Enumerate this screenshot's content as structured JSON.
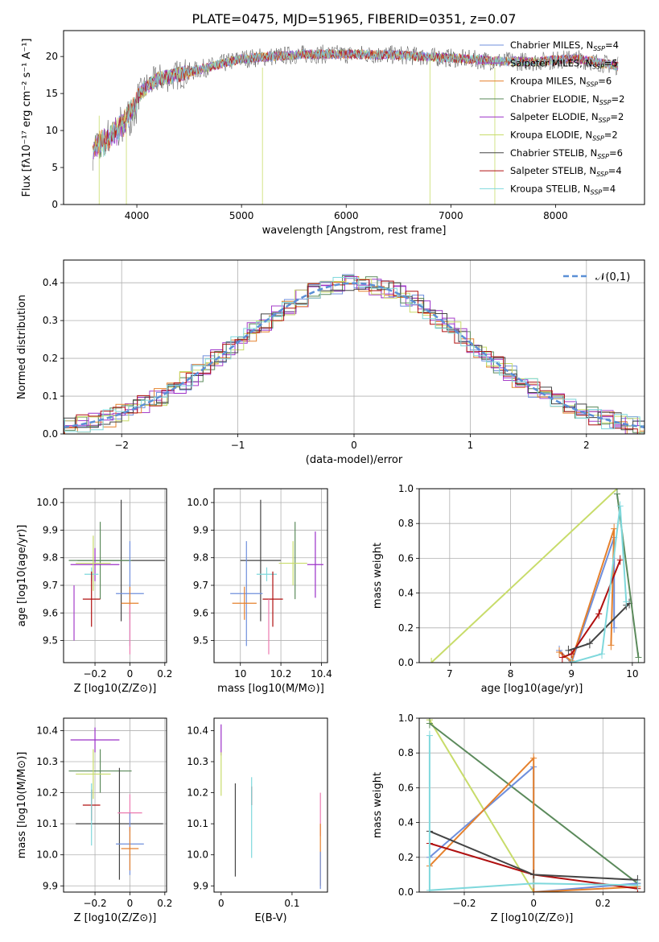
{
  "figure_title": "PLATE=0475, MJD=51965, FIBERID=0351, z=0.07",
  "colors": {
    "chabrier_miles": "#6f8fdc",
    "salpeter_miles": "#a63fc9",
    "kroupa_miles": "#e5812d",
    "chabrier_elodie": "#5b8a5b",
    "salpeter_elodie": "#9b30c8",
    "kroupa_elodie": "#c8dc6a",
    "chabrier_stelib": "#444444",
    "salpeter_stelib": "#b01010",
    "kroupa_stelib": "#7fd8dc",
    "gauss": "#5b8fd6",
    "pink": "#ec7ab0"
  },
  "chart_data": [
    {
      "type": "line",
      "title": "PLATE=0475, MJD=51965, FIBERID=0351, z=0.07",
      "xlabel": "wavelength [Angstrom, rest frame]",
      "ylabel": "Flux [fλ10⁻¹⁷ erg cm⁻² s⁻¹ A⁻¹]",
      "xlim": [
        3300,
        8850
      ],
      "ylim": [
        0,
        23.5
      ],
      "xticks": [
        4000,
        5000,
        6000,
        7000,
        8000
      ],
      "yticks": [
        0,
        5,
        10,
        15,
        20
      ],
      "grid": false,
      "legend_position": "top-right",
      "legend": [
        "Chabrier MILES, N_SSP=4",
        "Salpeter MILES, N_SSP=5",
        "Kroupa MILES, N_SSP=6",
        "Chabrier ELODIE, N_SSP=2",
        "Salpeter ELODIE, N_SSP=2",
        "Kroupa ELODIE, N_SSP=2",
        "Chabrier STELIB, N_SSP=6",
        "Salpeter STELIB, N_SSP=4",
        "Kroupa STELIB, N_SSP=4"
      ],
      "legend_colors": [
        "#6f8fdc",
        "#a63fc9",
        "#e5812d",
        "#5b8a5b",
        "#9b30c8",
        "#c8dc6a",
        "#444444",
        "#b01010",
        "#7fd8dc"
      ],
      "continuum": {
        "x": [
          3580,
          3700,
          3800,
          3900,
          4000,
          4100,
          4200,
          4300,
          4500,
          4700,
          5000,
          5300,
          5600,
          6000,
          6500,
          7000,
          7400,
          7800,
          8200,
          8600
        ],
        "y": [
          8.5,
          9.5,
          10.8,
          12.5,
          14.5,
          16.0,
          17.0,
          17.2,
          17.9,
          18.6,
          19.7,
          20.0,
          20.3,
          20.3,
          20.2,
          19.8,
          19.4,
          19.3,
          19.7,
          18.7
        ]
      },
      "vertical_spikes": [
        {
          "x": 3640,
          "y_bottom": 0,
          "y_top": 12
        },
        {
          "x": 3900,
          "y_bottom": 0,
          "y_top": 11.5
        },
        {
          "x": 5200,
          "y_bottom": 0,
          "y_top": 18.5
        },
        {
          "x": 6800,
          "y_bottom": 0,
          "y_top": 19.5
        },
        {
          "x": 7420,
          "y_bottom": 0,
          "y_top": 18.5
        }
      ]
    },
    {
      "type": "line",
      "title": "",
      "xlabel": "(data-model)/error",
      "ylabel": "Normed distribution",
      "xlim": [
        -2.5,
        2.5
      ],
      "ylim": [
        0,
        0.46
      ],
      "xticks": [
        -2,
        -1,
        0,
        1,
        2
      ],
      "yticks": [
        0.0,
        0.1,
        0.2,
        0.3,
        0.4
      ],
      "grid": true,
      "legend_position": "top-right",
      "legend": [
        "𝒩(0,1)"
      ],
      "series": [
        {
          "name": "𝒩(0,1)",
          "mu": 0,
          "sigma": 1
        }
      ]
    },
    {
      "type": "scatter",
      "title": "",
      "xlabel": "Z [log10(Z/Z⊙)]",
      "ylabel": "age  [log10(age/yr)]",
      "xlim": [
        -0.38,
        0.21
      ],
      "ylim": [
        9.42,
        10.05
      ],
      "xticks": [
        -0.2,
        0.0,
        0.2
      ],
      "yticks": [
        9.5,
        9.6,
        9.7,
        9.8,
        9.9,
        10.0
      ],
      "grid": true,
      "points": [
        {
          "x": -0.05,
          "y": 9.79,
          "xerr": 0.25,
          "yerr": 0.22,
          "color": "#444444"
        },
        {
          "x": -0.17,
          "y": 9.79,
          "xerr": 0.18,
          "yerr": 0.14,
          "color": "#5b8a5b"
        },
        {
          "x": -0.2,
          "y": 9.775,
          "xerr": 0.14,
          "yerr": 0.06,
          "color": "#9b30c8"
        },
        {
          "x": -0.21,
          "y": 9.78,
          "xerr": 0.1,
          "yerr": 0.1,
          "color": "#c8dc6a"
        },
        {
          "x": -0.22,
          "y": 9.74,
          "xerr": 0.04,
          "yerr": 0.025,
          "color": "#7fd8dc"
        },
        {
          "x": 0.0,
          "y": 9.67,
          "xerr": 0.08,
          "yerr": 0.19,
          "color": "#6f8fdc"
        },
        {
          "x": -0.22,
          "y": 9.65,
          "xerr": 0.05,
          "yerr": 0.1,
          "color": "#b01010"
        },
        {
          "x": 0.0,
          "y": 9.635,
          "xerr": 0.05,
          "yerr": 0.06,
          "color": "#e5812d"
        },
        {
          "x": -0.32,
          "y": 9.6,
          "xerr": 0.0,
          "yerr": 0.1,
          "color": "#a63fc9"
        },
        {
          "x": 0.0,
          "y": 9.54,
          "xerr": 0.0,
          "yerr": 0.09,
          "color": "#ec7ab0"
        }
      ]
    },
    {
      "type": "scatter",
      "title": "",
      "xlabel": "mass [log10(M/M⊙)]",
      "ylabel": "",
      "xlim": [
        9.87,
        10.43
      ],
      "ylim": [
        9.42,
        10.05
      ],
      "xticks": [
        10.0,
        10.2,
        10.4
      ],
      "yticks": [
        9.5,
        9.6,
        9.7,
        9.8,
        9.9,
        10.0
      ],
      "grid": true,
      "points": [
        {
          "x": 10.1,
          "y": 9.79,
          "xerr": 0.1,
          "yerr": 0.22,
          "color": "#444444"
        },
        {
          "x": 10.27,
          "y": 9.79,
          "xerr": 0.0,
          "yerr": 0.14,
          "color": "#5b8a5b"
        },
        {
          "x": 10.37,
          "y": 9.775,
          "xerr": 0.04,
          "yerr": 0.12,
          "color": "#9b30c8"
        },
        {
          "x": 10.26,
          "y": 9.78,
          "xerr": 0.07,
          "yerr": 0.08,
          "color": "#c8dc6a"
        },
        {
          "x": 10.13,
          "y": 9.74,
          "xerr": 0.05,
          "yerr": 0.025,
          "color": "#7fd8dc"
        },
        {
          "x": 10.03,
          "y": 9.67,
          "xerr": 0.08,
          "yerr": 0.19,
          "color": "#6f8fdc"
        },
        {
          "x": 10.16,
          "y": 9.65,
          "xerr": 0.05,
          "yerr": 0.1,
          "color": "#b01010"
        },
        {
          "x": 10.02,
          "y": 9.635,
          "xerr": 0.06,
          "yerr": 0.06,
          "color": "#e5812d"
        },
        {
          "x": 10.14,
          "y": 9.55,
          "xerr": 0.0,
          "yerr": 0.1,
          "color": "#ec7ab0"
        }
      ]
    },
    {
      "type": "line",
      "title": "",
      "xlabel": "age  [log10(age/yr)]",
      "ylabel": "mass weight",
      "xlim": [
        6.5,
        10.2
      ],
      "ylim": [
        0,
        1.0
      ],
      "xticks": [
        7,
        8,
        9,
        10
      ],
      "yticks": [
        0.0,
        0.2,
        0.4,
        0.6,
        0.8,
        1.0
      ],
      "grid": true,
      "series": [
        {
          "color": "#c8dc6a",
          "x": [
            6.7,
            9.75,
            6.7
          ],
          "y": [
            0.0,
            1.0,
            0.0
          ]
        },
        {
          "color": "#6f8fdc",
          "x": [
            8.8,
            9.0,
            9.7,
            9.7
          ],
          "y": [
            0.07,
            0.0,
            0.72,
            0.2
          ]
        },
        {
          "color": "#e5812d",
          "x": [
            8.8,
            9.0,
            9.7,
            9.65
          ],
          "y": [
            0.06,
            0.01,
            0.77,
            0.1
          ]
        },
        {
          "color": "#b01010",
          "x": [
            8.85,
            9.0,
            9.45,
            9.8
          ],
          "y": [
            0.03,
            0.05,
            0.28,
            0.59
          ]
        },
        {
          "color": "#444444",
          "x": [
            8.95,
            9.3,
            9.95,
            9.9
          ],
          "y": [
            0.07,
            0.11,
            0.34,
            0.33
          ]
        },
        {
          "color": "#5b8a5b",
          "x": [
            9.75,
            10.1
          ],
          "y": [
            0.97,
            0.03
          ]
        },
        {
          "color": "#7fd8dc",
          "x": [
            9.0,
            9.5,
            9.8,
            9.9
          ],
          "y": [
            0.0,
            0.05,
            0.9,
            0.35
          ]
        }
      ]
    },
    {
      "type": "scatter",
      "title": "",
      "xlabel": "Z [log10(Z/Z⊙)]",
      "ylabel": "mass [log10(M/M⊙)]",
      "xlim": [
        -0.38,
        0.21
      ],
      "ylim": [
        9.88,
        10.44
      ],
      "xticks": [
        -0.2,
        0.0,
        0.2
      ],
      "yticks": [
        9.9,
        10.0,
        10.1,
        10.2,
        10.3,
        10.4
      ],
      "grid": true,
      "points": [
        {
          "x": -0.2,
          "y": 10.37,
          "xerr": 0.14,
          "yerr": 0.04,
          "color": "#9b30c8"
        },
        {
          "x": -0.17,
          "y": 10.27,
          "xerr": 0.18,
          "yerr": 0.07,
          "color": "#5b8a5b"
        },
        {
          "x": -0.21,
          "y": 10.26,
          "xerr": 0.1,
          "yerr": 0.08,
          "color": "#c8dc6a"
        },
        {
          "x": -0.22,
          "y": 10.16,
          "xerr": 0.05,
          "yerr": 0.05,
          "color": "#b01010"
        },
        {
          "x": -0.06,
          "y": 10.1,
          "xerr": 0.25,
          "yerr": 0.18,
          "color": "#444444"
        },
        {
          "x": 0.0,
          "y": 10.135,
          "xerr": 0.07,
          "yerr": 0.06,
          "color": "#ec7ab0"
        },
        {
          "x": 0.0,
          "y": 10.035,
          "xerr": 0.08,
          "yerr": 0.1,
          "color": "#6f8fdc"
        },
        {
          "x": 0.0,
          "y": 10.02,
          "xerr": 0.05,
          "yerr": 0.07,
          "color": "#e5812d"
        },
        {
          "x": -0.22,
          "y": 10.13,
          "xerr": 0.0,
          "yerr": 0.1,
          "color": "#7fd8dc"
        }
      ]
    },
    {
      "type": "scatter",
      "title": "",
      "xlabel": "E(B-V)",
      "ylabel": "",
      "xlim": [
        -0.01,
        0.15
      ],
      "ylim": [
        9.88,
        10.44
      ],
      "xticks": [
        0.0,
        0.1
      ],
      "yticks": [
        9.9,
        10.0,
        10.1,
        10.2,
        10.3,
        10.4
      ],
      "grid": false,
      "points": [
        {
          "x": 0.0,
          "y": 10.37,
          "xerr": 0.0,
          "yerr": 0.05,
          "color": "#9b30c8"
        },
        {
          "x": 0.0,
          "y": 10.26,
          "xerr": 0.0,
          "yerr": 0.07,
          "color": "#c8dc6a"
        },
        {
          "x": 0.02,
          "y": 10.08,
          "xerr": 0.0,
          "yerr": 0.15,
          "color": "#444444"
        },
        {
          "x": 0.043,
          "y": 10.19,
          "xerr": 0.0,
          "yerr": 0.03,
          "color": "#b01010"
        },
        {
          "x": 0.043,
          "y": 10.12,
          "xerr": 0.0,
          "yerr": 0.13,
          "color": "#7fd8dc"
        },
        {
          "x": 0.14,
          "y": 10.13,
          "xerr": 0.0,
          "yerr": 0.07,
          "color": "#ec7ab0"
        },
        {
          "x": 0.14,
          "y": 10.0,
          "xerr": 0.0,
          "yerr": 0.1,
          "color": "#e5812d"
        },
        {
          "x": 0.14,
          "y": 9.95,
          "xerr": 0.0,
          "yerr": 0.06,
          "color": "#6f8fdc"
        }
      ]
    },
    {
      "type": "line",
      "title": "",
      "xlabel": "Z [log10(Z/Z⊙)]",
      "ylabel": "mass weight",
      "xlim": [
        -0.33,
        0.32
      ],
      "ylim": [
        0,
        1.0
      ],
      "xticks": [
        -0.2,
        0.0,
        0.2
      ],
      "yticks": [
        0.0,
        0.2,
        0.4,
        0.6,
        0.8,
        1.0
      ],
      "grid": true,
      "series": [
        {
          "color": "#c8dc6a",
          "x": [
            -0.3,
            0.0,
            0.0,
            -0.3
          ],
          "y": [
            0.99,
            0.0,
            0.0,
            0.99
          ]
        },
        {
          "color": "#5b8a5b",
          "x": [
            -0.3,
            0.3
          ],
          "y": [
            0.97,
            0.05
          ]
        },
        {
          "color": "#6f8fdc",
          "x": [
            -0.3,
            0.0,
            0.0,
            0.3
          ],
          "y": [
            0.2,
            0.72,
            0.0,
            0.05
          ]
        },
        {
          "color": "#e5812d",
          "x": [
            -0.3,
            0.0,
            0.0,
            0.3
          ],
          "y": [
            0.15,
            0.77,
            0.0,
            0.03
          ]
        },
        {
          "color": "#b01010",
          "x": [
            -0.3,
            0.0,
            0.3
          ],
          "y": [
            0.28,
            0.1,
            0.02
          ]
        },
        {
          "color": "#444444",
          "x": [
            -0.3,
            0.0,
            0.3
          ],
          "y": [
            0.35,
            0.1,
            0.07
          ]
        },
        {
          "color": "#7fd8dc",
          "x": [
            -0.3,
            -0.3,
            0.0,
            0.3
          ],
          "y": [
            0.9,
            0.01,
            0.05,
            0.04
          ]
        }
      ]
    }
  ]
}
